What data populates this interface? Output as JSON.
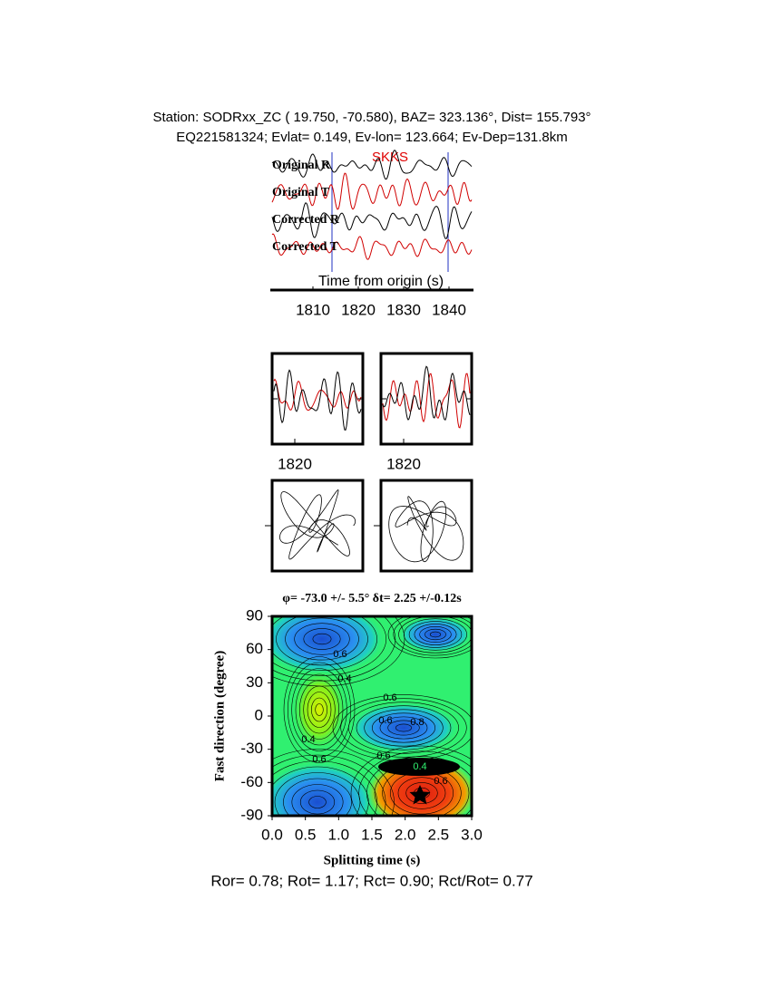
{
  "header": {
    "line1": "Station: SODRxx_ZC (  19.750,  -70.580), BAZ=  323.136°, Dist=  155.793°",
    "line2": "EQ221581324; Evlat=   0.149, Ev-lon= 123.664; Ev-Dep=131.8km"
  },
  "traces": {
    "phase": "SKKS",
    "labels": [
      "Original R",
      "Original T",
      "Corrected R",
      "Corrected T"
    ],
    "xlabel": "Time from origin (s)",
    "xlim": [
      1801,
      1845
    ],
    "xticks": [
      1810,
      1820,
      1830,
      1840
    ]
  },
  "window_panels": [
    {
      "xlim": [
        1815,
        1835
      ],
      "xticks": [
        1820
      ]
    },
    {
      "xlim": [
        1815,
        1835
      ],
      "xticks": [
        1820
      ]
    }
  ],
  "grid_search": {
    "title": "φ= -73.0 +/- 5.5° δt= 2.25 +/-0.12s",
    "xlabel": "Splitting time (s)",
    "ylabel": "Fast direction (degree)",
    "xlim": [
      0,
      3
    ],
    "ylim": [
      -90,
      90
    ],
    "xticks": [
      {
        "value": 0,
        "label": "0.0"
      },
      0.5,
      {
        "value": 1,
        "label": "1.0"
      },
      1.5,
      {
        "value": 2,
        "label": "2.0"
      },
      2.5,
      {
        "value": 3,
        "label": "3.0"
      }
    ],
    "yticks": [
      90,
      60,
      30,
      0,
      -30,
      -60,
      -90
    ],
    "contour_labels": [
      "0.6",
      "0.4",
      "0.6",
      "0.6",
      "0.8",
      "0.4",
      "0.6",
      "0.6",
      "0.4",
      "0.6"
    ]
  },
  "footer": "Ror= 0.78; Rot= 1.17; Rct= 0.90; Rct/Rot= 0.77"
}
